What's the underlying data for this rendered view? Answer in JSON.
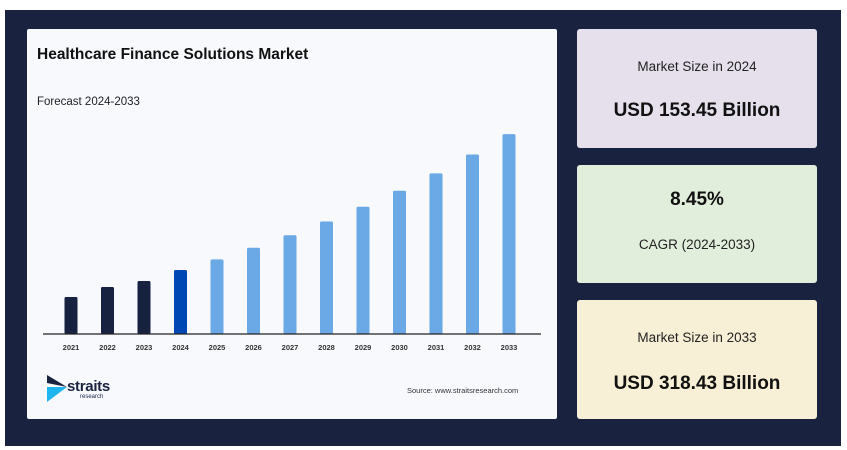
{
  "chart_data": {
    "type": "bar",
    "title": "Healthcare Finance Solutions Market",
    "subtitle": "Forecast 2024-2033",
    "categories": [
      "2021",
      "2022",
      "2023",
      "2024",
      "2025",
      "2026",
      "2027",
      "2028",
      "2029",
      "2030",
      "2031",
      "2032",
      "2033"
    ],
    "values": [
      120.7,
      132.8,
      140.1,
      153.45,
      166.4,
      180.5,
      195.7,
      212.3,
      230.2,
      249.6,
      270.7,
      293.6,
      318.43
    ],
    "unit": "USD Billion",
    "colors": {
      "historical": "#172140",
      "base_year": "#0047b3",
      "forecast": "#6aa8e6"
    },
    "highlight": "2024",
    "grid": false,
    "legend": "none"
  },
  "source": "Source: www.straitsresearch.com",
  "logo": {
    "name": "straits",
    "sub": "research"
  },
  "cards": [
    {
      "label": "Market Size in 2024",
      "value": "USD 153.45 Billion",
      "color": "#e5e0ec"
    },
    {
      "value": "8.45%",
      "label": "CAGR (2024-2033)",
      "color": "#e2eedc"
    },
    {
      "label": "Market Size in 2033",
      "value": "USD 318.43 Billion",
      "color": "#f7f0d6"
    }
  ]
}
